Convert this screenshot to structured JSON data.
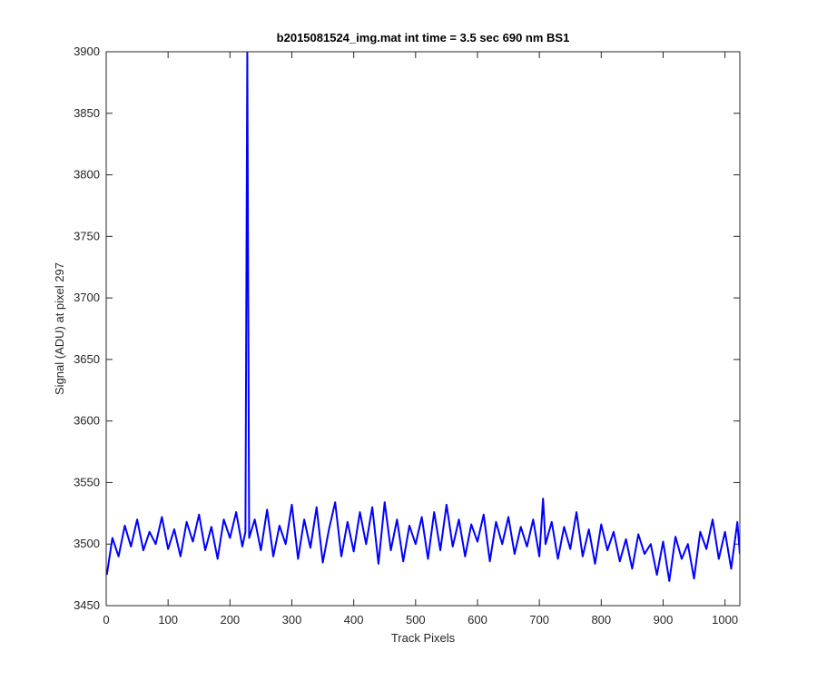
{
  "chart_data": {
    "type": "line",
    "title": "b2015081524_img.mat int time = 3.5 sec  690 nm BS1",
    "x_label": "Track Pixels",
    "y_label": "Signal (ADU) at pixel 297",
    "xlim": [
      0,
      1024
    ],
    "ylim": [
      3450,
      3900
    ],
    "xticks": [
      0,
      100,
      200,
      300,
      400,
      500,
      600,
      700,
      800,
      900,
      1000
    ],
    "yticks": [
      3450,
      3500,
      3550,
      3600,
      3650,
      3700,
      3750,
      3800,
      3850,
      3900
    ],
    "grid": false,
    "x": [
      1,
      10,
      20,
      30,
      40,
      50,
      60,
      70,
      80,
      90,
      100,
      110,
      120,
      130,
      140,
      150,
      160,
      170,
      180,
      190,
      200,
      210,
      220,
      225,
      228,
      231,
      240,
      250,
      260,
      270,
      280,
      290,
      300,
      310,
      320,
      330,
      340,
      350,
      360,
      370,
      380,
      390,
      400,
      410,
      420,
      430,
      440,
      450,
      460,
      470,
      480,
      490,
      500,
      510,
      520,
      530,
      540,
      550,
      560,
      570,
      580,
      590,
      600,
      610,
      620,
      630,
      640,
      650,
      660,
      670,
      680,
      690,
      700,
      706,
      710,
      720,
      730,
      740,
      750,
      760,
      770,
      780,
      790,
      800,
      810,
      820,
      830,
      840,
      850,
      860,
      870,
      880,
      890,
      900,
      910,
      920,
      930,
      940,
      950,
      960,
      970,
      980,
      990,
      1000,
      1010,
      1020,
      1024
    ],
    "series": [
      {
        "color": "#0000ff",
        "values": [
          3475,
          3505,
          3490,
          3515,
          3498,
          3520,
          3495,
          3510,
          3500,
          3522,
          3496,
          3512,
          3490,
          3518,
          3502,
          3524,
          3495,
          3514,
          3488,
          3520,
          3505,
          3526,
          3498,
          3510,
          3900,
          3505,
          3520,
          3495,
          3528,
          3490,
          3515,
          3500,
          3532,
          3488,
          3520,
          3497,
          3530,
          3485,
          3512,
          3534,
          3490,
          3518,
          3494,
          3526,
          3500,
          3530,
          3484,
          3534,
          3495,
          3520,
          3486,
          3515,
          3500,
          3522,
          3488,
          3526,
          3495,
          3532,
          3498,
          3520,
          3490,
          3516,
          3502,
          3524,
          3486,
          3518,
          3500,
          3522,
          3492,
          3514,
          3498,
          3520,
          3490,
          3537,
          3500,
          3518,
          3488,
          3514,
          3496,
          3526,
          3490,
          3512,
          3484,
          3516,
          3495,
          3510,
          3486,
          3504,
          3480,
          3508,
          3492,
          3500,
          3475,
          3502,
          3470,
          3506,
          3488,
          3500,
          3472,
          3510,
          3496,
          3520,
          3488,
          3510,
          3480,
          3518,
          3492
        ]
      }
    ]
  }
}
